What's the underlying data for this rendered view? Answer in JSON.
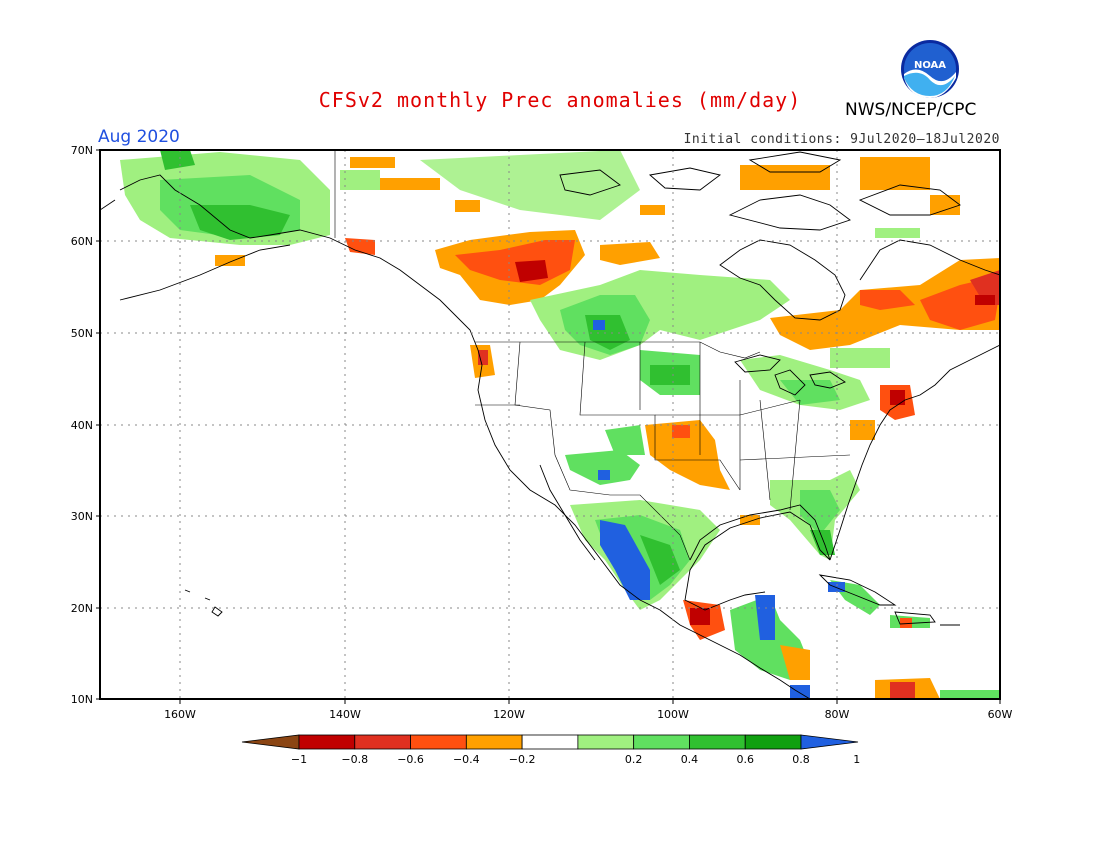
{
  "header": {
    "title": "CFSv2 monthly Prec anomalies (mm/day)",
    "month": "Aug 2020",
    "initial_conditions": "Initial conditions: 9Jul2020–18Jul2020",
    "agency": "NWS/NCEP/CPC",
    "logo_text": "NOAA"
  },
  "map": {
    "lat_labels": [
      "70N",
      "60N",
      "50N",
      "40N",
      "30N",
      "20N",
      "10N"
    ],
    "lon_labels": [
      "160W",
      "140W",
      "120W",
      "100W",
      "80W",
      "60W"
    ],
    "gridlines": "dotted"
  },
  "legend": {
    "labels": [
      "−1",
      "−0.8",
      "−0.6",
      "−0.4",
      "−0.2",
      "0.2",
      "0.4",
      "0.6",
      "0.8",
      "1"
    ],
    "colors": [
      "#8b4513",
      "#c00000",
      "#e03020",
      "#ff5010",
      "#ffa000",
      "#ffffff",
      "#a0f080",
      "#60e060",
      "#30c030",
      "#10a010",
      "#2060e0"
    ]
  }
}
